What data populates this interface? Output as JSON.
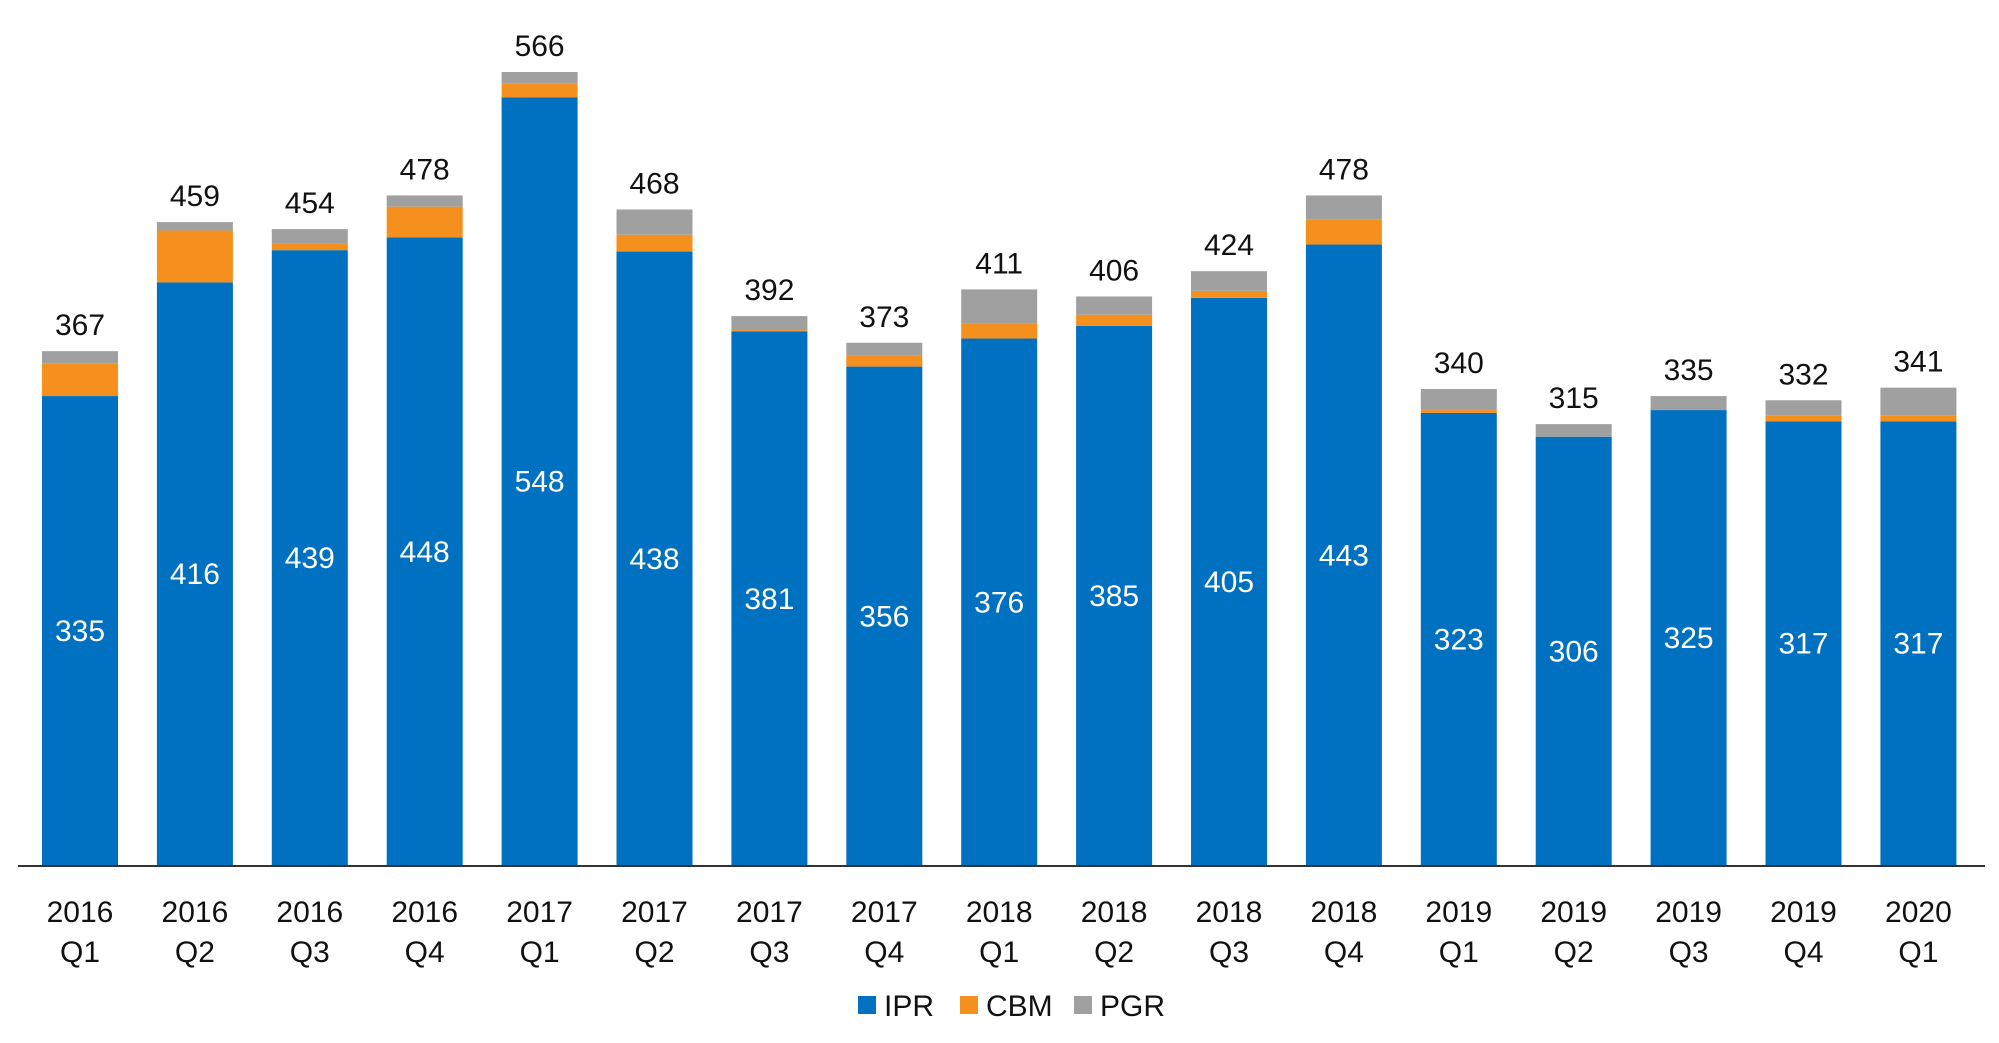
{
  "chart_data": {
    "type": "bar",
    "stacked": true,
    "title": "",
    "xlabel": "",
    "ylabel": "",
    "ylim": [
      0,
      566
    ],
    "grid": false,
    "legend_position": "bottom-center",
    "categories": [
      [
        "2016",
        "Q1"
      ],
      [
        "2016",
        "Q2"
      ],
      [
        "2016",
        "Q3"
      ],
      [
        "2016",
        "Q4"
      ],
      [
        "2017",
        "Q1"
      ],
      [
        "2017",
        "Q2"
      ],
      [
        "2017",
        "Q3"
      ],
      [
        "2017",
        "Q4"
      ],
      [
        "2018",
        "Q1"
      ],
      [
        "2018",
        "Q2"
      ],
      [
        "2018",
        "Q3"
      ],
      [
        "2018",
        "Q4"
      ],
      [
        "2019",
        "Q1"
      ],
      [
        "2019",
        "Q2"
      ],
      [
        "2019",
        "Q3"
      ],
      [
        "2019",
        "Q4"
      ],
      [
        "2020",
        "Q1"
      ]
    ],
    "series": [
      {
        "name": "IPR",
        "color": "#0070C0",
        "values": [
          335,
          416,
          439,
          448,
          548,
          438,
          381,
          356,
          376,
          385,
          405,
          443,
          323,
          306,
          325,
          317,
          317
        ]
      },
      {
        "name": "CBM",
        "color": "#F58F1E",
        "values": [
          23,
          37,
          5,
          22,
          10,
          12,
          1,
          8,
          11,
          8,
          5,
          18,
          2,
          0,
          0,
          4,
          4
        ]
      },
      {
        "name": "PGR",
        "color": "#A0A0A0",
        "values": [
          9,
          6,
          10,
          8,
          8,
          18,
          10,
          9,
          24,
          13,
          14,
          17,
          15,
          9,
          10,
          11,
          20
        ]
      }
    ],
    "totals": [
      367,
      459,
      454,
      478,
      566,
      468,
      392,
      373,
      411,
      406,
      424,
      478,
      340,
      315,
      335,
      332,
      341
    ]
  }
}
